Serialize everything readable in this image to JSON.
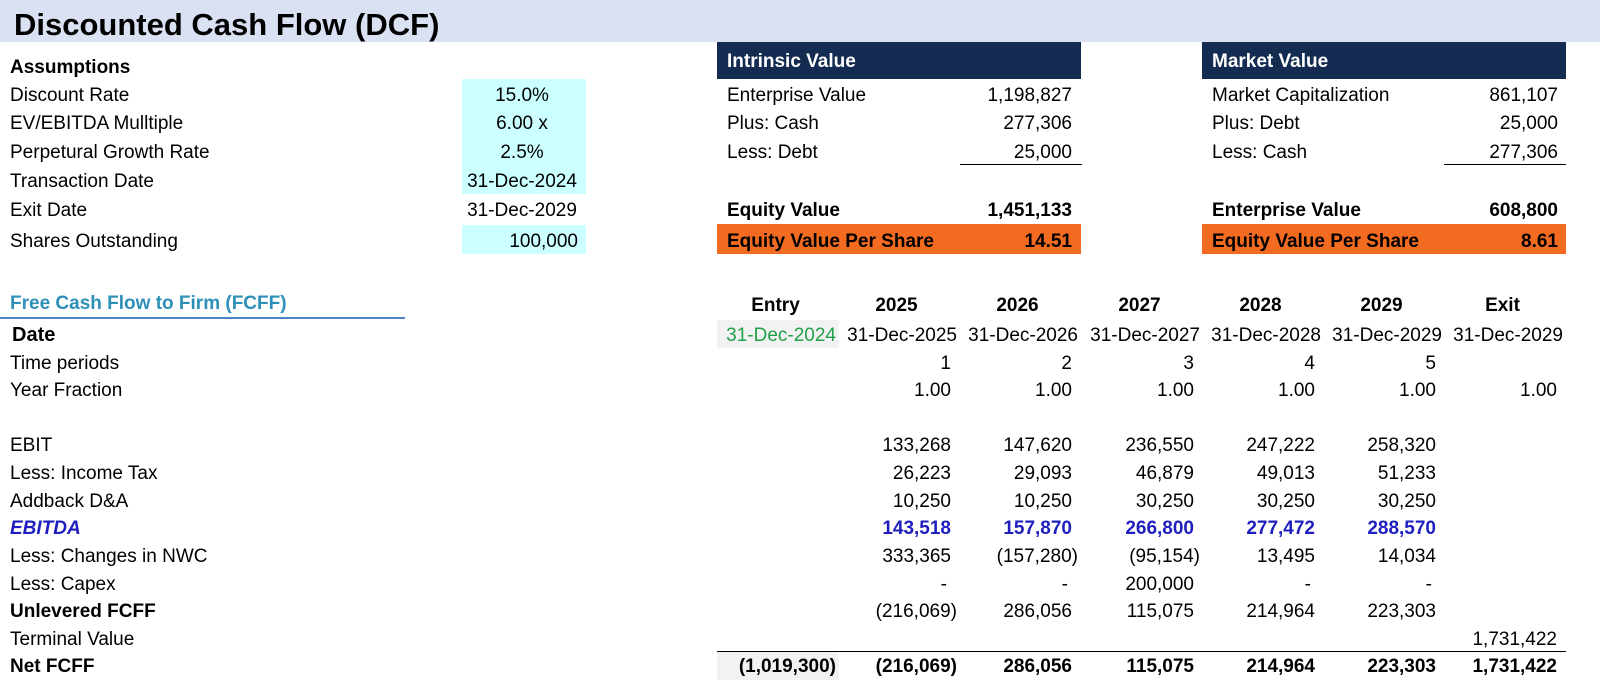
{
  "title": "Discounted Cash Flow (DCF)",
  "assumptions": {
    "header": "Assumptions",
    "rows": [
      {
        "label": "Discount Rate",
        "value": "15.0%",
        "input": true
      },
      {
        "label": "EV/EBITDA Mulltiple",
        "value": "6.00 x",
        "input": true
      },
      {
        "label": "Perpetural Growth Rate",
        "value": "2.5%",
        "input": true
      },
      {
        "label": "Transaction Date",
        "value": "31-Dec-2024",
        "input": true
      },
      {
        "label": "Exit Date",
        "value": "31-Dec-2029",
        "input": false
      },
      {
        "label": "Shares Outstanding",
        "value": "100,000",
        "input": true
      }
    ]
  },
  "intrinsic": {
    "header": "Intrinsic Value",
    "rows": [
      {
        "label": "Enterprise Value",
        "value": "1,198,827"
      },
      {
        "label": "Plus: Cash",
        "value": "277,306"
      },
      {
        "label": "Less: Debt",
        "value": "25,000"
      }
    ],
    "total_label": "Equity Value",
    "total_value": "1,451,133",
    "per_share_label": "Equity Value Per Share",
    "per_share_value": "14.51"
  },
  "market": {
    "header": "Market Value",
    "rows": [
      {
        "label": "Market Capitalization",
        "value": "861,107"
      },
      {
        "label": "Plus: Debt",
        "value": "25,000"
      },
      {
        "label": "Less: Cash",
        "value": "277,306"
      }
    ],
    "total_label": "Enterprise Value",
    "total_value": "608,800",
    "per_share_label": "Equity Value Per Share",
    "per_share_value": "8.61"
  },
  "fcff": {
    "section_title": "Free Cash Flow to Firm (FCFF)",
    "columns": [
      "Entry",
      "2025",
      "2026",
      "2027",
      "2028",
      "2029",
      "Exit"
    ],
    "date_label": "Date",
    "dates": [
      "31-Dec-2024",
      "31-Dec-2025",
      "31-Dec-2026",
      "31-Dec-2027",
      "31-Dec-2028",
      "31-Dec-2029",
      "31-Dec-2029"
    ],
    "time_periods": {
      "label": "Time periods",
      "values": [
        "",
        "1",
        "2",
        "3",
        "4",
        "5",
        ""
      ]
    },
    "year_fraction": {
      "label": "Year Fraction",
      "values": [
        "",
        "1.00",
        "1.00",
        "1.00",
        "1.00",
        "1.00",
        "1.00"
      ]
    },
    "rows": [
      {
        "label": "EBIT",
        "style": "normal",
        "values": [
          "",
          "133,268",
          "147,620",
          "236,550",
          "247,222",
          "258,320",
          ""
        ]
      },
      {
        "label": "Less: Income Tax",
        "style": "normal",
        "values": [
          "",
          "26,223",
          "29,093",
          "46,879",
          "49,013",
          "51,233",
          ""
        ]
      },
      {
        "label": "Addback D&A",
        "style": "normal",
        "values": [
          "",
          "10,250",
          "10,250",
          "30,250",
          "30,250",
          "30,250",
          ""
        ]
      },
      {
        "label": "EBITDA",
        "style": "ebitda",
        "values": [
          "",
          "143,518",
          "157,870",
          "266,800",
          "277,472",
          "288,570",
          ""
        ]
      },
      {
        "label": "Less: Changes in NWC",
        "style": "normal",
        "values": [
          "",
          "333,365",
          "(157,280)",
          "(95,154)",
          "13,495",
          "14,034",
          ""
        ]
      },
      {
        "label": "Less: Capex",
        "style": "normal",
        "values": [
          "",
          "-",
          "-",
          "200,000",
          "-",
          "-",
          ""
        ]
      },
      {
        "label": "Unlevered FCFF",
        "style": "boldlabel",
        "values": [
          "",
          "(216,069)",
          "286,056",
          "115,075",
          "214,964",
          "223,303",
          ""
        ]
      },
      {
        "label": "Terminal Value",
        "style": "normal",
        "values": [
          "",
          "",
          "",
          "",
          "",
          "",
          "1,731,422"
        ]
      },
      {
        "label": "Net FCFF",
        "style": "total",
        "values": [
          "(1,019,300)",
          "(216,069)",
          "286,056",
          "115,075",
          "214,964",
          "223,303",
          "1,731,422"
        ]
      }
    ]
  },
  "colors": {
    "title_band": "#d9e1f2",
    "input_cell": "#ccffff",
    "header_navy": "#152c52",
    "per_share_orange": "#f26b21",
    "ebitda_blue": "#1f1fbf",
    "entry_date_green": "#21a04a",
    "section_blue": "#2e8fb8"
  }
}
